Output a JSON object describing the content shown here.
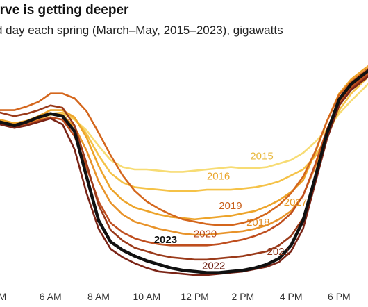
{
  "chart_data": {
    "type": "line",
    "title": "urve is getting deeper",
    "subtitle": "d day each spring (March–May, 2015–2023), gigawatts",
    "xlabel": "",
    "ylabel": "",
    "x_ticks": [
      {
        "hour": 4,
        "label": "M"
      },
      {
        "hour": 6,
        "label": "6 AM"
      },
      {
        "hour": 8,
        "label": "8 AM"
      },
      {
        "hour": 10,
        "label": "10 AM"
      },
      {
        "hour": 12,
        "label": "12 PM"
      },
      {
        "hour": 14,
        "label": "2 PM"
      },
      {
        "hour": 16,
        "label": "4 PM"
      },
      {
        "hour": 18,
        "label": "6 PM"
      }
    ],
    "xlim": [
      3.9,
      19.2
    ],
    "ylim": [
      4,
      22.5
    ],
    "grid": false,
    "legend": "inline labels",
    "x": [
      3.9,
      4.5,
      5,
      5.5,
      6,
      6.5,
      7,
      7.5,
      8,
      8.5,
      9,
      9.5,
      10,
      10.5,
      11,
      11.5,
      12,
      12.5,
      13,
      13.5,
      14,
      14.5,
      15,
      15.5,
      16,
      16.5,
      17,
      17.5,
      18,
      18.5,
      19,
      19.2
    ],
    "series": [
      {
        "name": "2015",
        "color": "#f7dc74",
        "values": [
          17.7,
          17.5,
          17.6,
          17.8,
          18.2,
          18.3,
          17.8,
          16.9,
          15.6,
          14.4,
          13.8,
          13.6,
          13.6,
          13.5,
          13.4,
          13.4,
          13.5,
          13.6,
          13.7,
          13.8,
          13.7,
          13.7,
          13.8,
          14.1,
          14.4,
          15.0,
          15.9,
          17.0,
          18.3,
          19.4,
          20.4,
          20.8
        ]
      },
      {
        "name": "2016",
        "color": "#f5c247",
        "values": [
          17.6,
          17.3,
          17.5,
          17.8,
          18.3,
          18.4,
          17.9,
          16.6,
          14.8,
          13.3,
          12.5,
          12.1,
          12.0,
          11.9,
          11.8,
          11.8,
          11.8,
          11.9,
          11.9,
          11.9,
          12.0,
          12.1,
          12.3,
          12.6,
          13.1,
          13.6,
          14.7,
          16.4,
          18.6,
          20.0,
          21.0,
          21.4
        ]
      },
      {
        "name": "2017",
        "color": "#eda42a",
        "values": [
          17.8,
          17.5,
          17.7,
          18.1,
          18.6,
          18.6,
          18.0,
          16.3,
          13.9,
          12.0,
          11.0,
          10.4,
          10.1,
          9.8,
          9.6,
          9.5,
          9.4,
          9.5,
          9.6,
          9.7,
          9.9,
          10.1,
          10.5,
          11.0,
          11.7,
          12.7,
          15.0,
          17.7,
          20.0,
          21.2,
          22.0,
          22.3
        ]
      },
      {
        "name": "2018",
        "color": "#e8932a",
        "values": [
          17.5,
          17.4,
          17.6,
          17.8,
          18.3,
          18.2,
          17.2,
          15.2,
          12.6,
          10.8,
          9.8,
          9.2,
          8.9,
          8.6,
          8.4,
          8.2,
          8.1,
          8.1,
          8.2,
          8.3,
          8.4,
          8.6,
          8.9,
          9.4,
          10.1,
          11.4,
          13.8,
          16.8,
          19.1,
          20.5,
          21.3,
          21.6
        ]
      },
      {
        "name": "2019",
        "color": "#d4661c",
        "values": [
          18.6,
          18.6,
          18.9,
          19.3,
          20.0,
          20.0,
          19.6,
          18.5,
          16.7,
          14.8,
          13.1,
          11.8,
          10.9,
          10.3,
          9.8,
          9.4,
          9.2,
          9.0,
          8.9,
          8.9,
          9.1,
          9.4,
          9.9,
          10.6,
          11.6,
          13.0,
          15.1,
          17.7,
          19.9,
          21.0,
          21.8,
          22.1
        ]
      },
      {
        "name": "2020",
        "color": "#bf4e1e",
        "values": [
          17.5,
          17.2,
          17.4,
          17.7,
          18.0,
          17.8,
          16.4,
          13.8,
          10.9,
          9.1,
          8.3,
          7.8,
          7.5,
          7.3,
          7.2,
          7.2,
          7.2,
          7.2,
          7.3,
          7.5,
          7.7,
          8.0,
          8.4,
          9.0,
          9.9,
          11.4,
          14.0,
          17.0,
          19.3,
          20.6,
          21.4,
          21.7
        ]
      },
      {
        "name": "2021",
        "color": "#9a3a1a",
        "values": [
          18.4,
          18.1,
          18.3,
          18.6,
          19.0,
          18.8,
          17.3,
          14.1,
          10.6,
          8.5,
          7.6,
          7.0,
          6.7,
          6.4,
          6.2,
          6.1,
          6.0,
          6.0,
          6.1,
          6.2,
          6.3,
          6.5,
          6.7,
          7.2,
          8.0,
          9.5,
          12.6,
          16.3,
          19.0,
          20.4,
          21.2,
          21.5
        ]
      },
      {
        "name": "2022",
        "color": "#7a2416",
        "values": [
          17.4,
          17.1,
          17.3,
          17.6,
          17.9,
          17.4,
          15.3,
          11.6,
          8.6,
          6.9,
          6.2,
          5.7,
          5.3,
          5.0,
          4.9,
          4.8,
          4.7,
          4.7,
          4.8,
          4.9,
          5.0,
          5.2,
          5.4,
          5.8,
          6.7,
          8.6,
          12.4,
          16.2,
          19.0,
          20.3,
          21.1,
          21.4
        ]
      },
      {
        "name": "2023",
        "color": "#111111",
        "values": [
          17.6,
          17.3,
          17.6,
          18.0,
          18.3,
          18.1,
          16.8,
          13.0,
          9.3,
          7.5,
          6.8,
          6.3,
          5.9,
          5.6,
          5.3,
          5.1,
          5.0,
          4.9,
          4.9,
          5.0,
          5.1,
          5.3,
          5.6,
          6.1,
          7.2,
          9.3,
          12.9,
          16.7,
          19.5,
          20.8,
          21.6,
          21.9
        ]
      }
    ],
    "labels": [
      {
        "text": "2015",
        "color": "#e8b83c",
        "hour": 14.3,
        "gw": 14.45
      },
      {
        "text": "2016",
        "color": "#e9a52a",
        "hour": 12.5,
        "gw": 12.75
      },
      {
        "text": "2019",
        "color": "#c95f1a",
        "hour": 13.0,
        "gw": 10.25
      },
      {
        "text": "2017",
        "color": "#e7961f",
        "hour": 15.7,
        "gw": 10.55
      },
      {
        "text": "2018",
        "color": "#e18b22",
        "hour": 14.15,
        "gw": 8.85
      },
      {
        "text": "2020",
        "color": "#b84a1c",
        "hour": 11.95,
        "gw": 7.9
      },
      {
        "text": "2023",
        "color": "#111111",
        "hour": 10.3,
        "gw": 7.4
      },
      {
        "text": "2021",
        "color": "#8a3218",
        "hour": 15.0,
        "gw": 6.4
      },
      {
        "text": "2022",
        "color": "#6e2114",
        "hour": 12.3,
        "gw": 5.2
      }
    ]
  }
}
